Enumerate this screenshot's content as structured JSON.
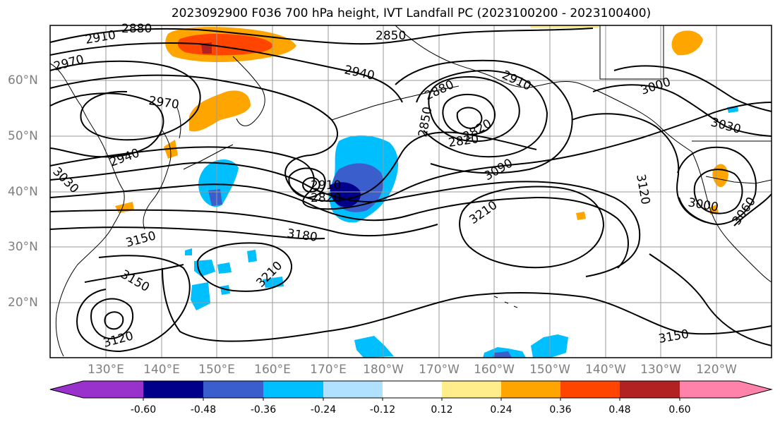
{
  "title": "2023092900 F036 700 hPa height, IVT Landfall PC (2023100200 - 2023100400)",
  "latitude_labels": [
    "60°N",
    "50°N",
    "40°N",
    "30°N",
    "20°N"
  ],
  "longitude_labels": [
    "130°E",
    "140°E",
    "150°E",
    "160°E",
    "170°E",
    "180°W",
    "170°W",
    "160°W",
    "150°W",
    "140°W",
    "130°W",
    "120°W"
  ],
  "contour_labels": [
    "2880",
    "2910",
    "2850",
    "2940",
    "2970",
    "2970",
    "2880",
    "2910",
    "3000",
    "2850",
    "2820",
    "2820",
    "3030",
    "2940",
    "3090",
    "3120",
    "2910",
    "2820",
    "3030",
    "3000",
    "3060",
    "3150",
    "3210",
    "3180",
    "3210",
    "3150",
    "3150",
    "3120"
  ],
  "colorbar": {
    "tick_labels": [
      "-0.60",
      "-0.48",
      "-0.36",
      "-0.24",
      "-0.12",
      "0.12",
      "0.24",
      "0.36",
      "0.48",
      "0.60"
    ],
    "colors": [
      "#9932cc",
      "#00008b",
      "#3a5fcd",
      "#00bfff",
      "#b0e2ff",
      "#ffffff",
      "#ffec8b",
      "#ffa500",
      "#ff4500",
      "#b22222",
      "#ff82ab"
    ]
  }
}
